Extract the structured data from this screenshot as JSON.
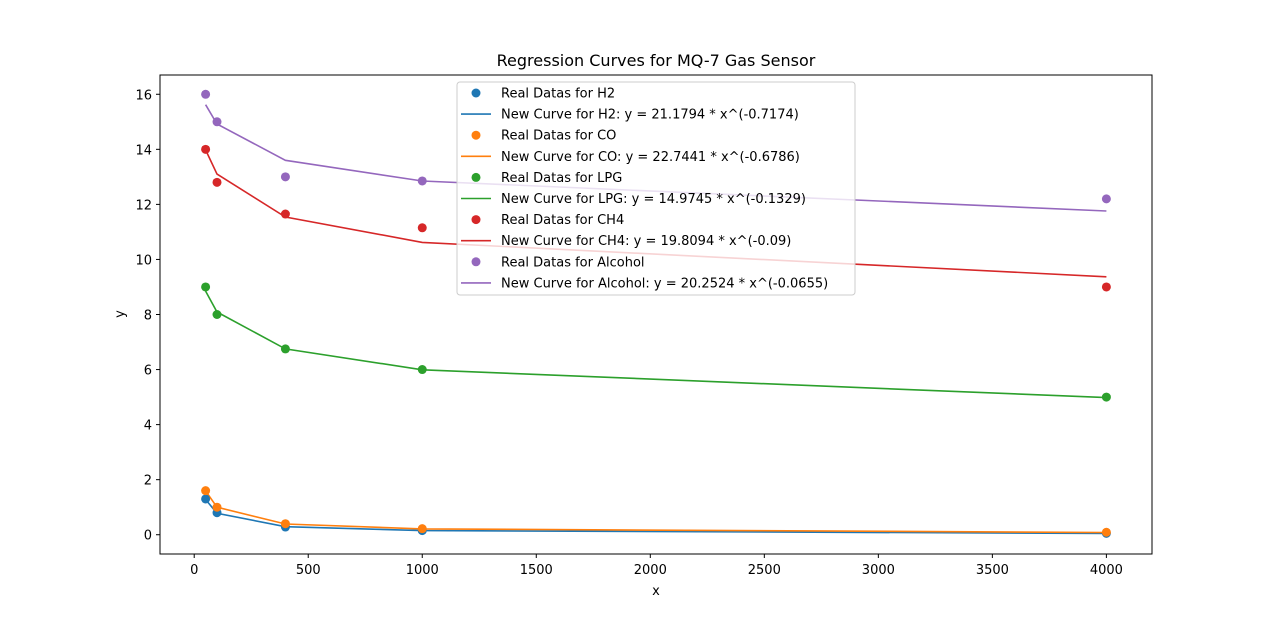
{
  "chart_data": {
    "type": "scatter",
    "title": "Regression Curves for MQ-7 Gas Sensor",
    "xlabel": "x",
    "ylabel": "y",
    "xlim": [
      -150,
      4200
    ],
    "ylim": [
      -0.7,
      16.7
    ],
    "xticks": [
      0,
      500,
      1000,
      1500,
      2000,
      2500,
      3000,
      3500,
      4000
    ],
    "yticks": [
      0,
      2,
      4,
      6,
      8,
      10,
      12,
      14,
      16
    ],
    "grid": false,
    "legend_position": "top-center",
    "x": [
      50,
      100,
      400,
      1000,
      4000
    ],
    "series": [
      {
        "name": "H2",
        "scatter_label": "Real Datas for H2",
        "curve_label": "New Curve for H2: y = 21.1794 * x^(-0.7174)",
        "color": "#1f77b4",
        "points": [
          1.3,
          0.8,
          0.28,
          0.15,
          0.05
        ],
        "curve": [
          1.28,
          0.78,
          0.29,
          0.15,
          0.05
        ]
      },
      {
        "name": "CO",
        "scatter_label": "Real Datas for CO",
        "curve_label": "New Curve for CO: y = 22.7441 * x^(-0.6786)",
        "color": "#ff7f0e",
        "points": [
          1.6,
          1.0,
          0.4,
          0.22,
          0.09
        ],
        "curve": [
          1.59,
          1.0,
          0.39,
          0.21,
          0.08
        ]
      },
      {
        "name": "LPG",
        "scatter_label": "Real Datas for LPG",
        "curve_label": "New Curve for LPG: y = 14.9745 * x^(-0.1329)",
        "color": "#2ca02c",
        "points": [
          9.0,
          8.0,
          6.75,
          6.0,
          5.0
        ],
        "curve": [
          8.85,
          8.09,
          6.75,
          5.99,
          4.98
        ]
      },
      {
        "name": "CH4",
        "scatter_label": "Real Datas for CH4",
        "curve_label": "New Curve for CH4: y = 19.8094 * x^(-0.09)",
        "color": "#d62728",
        "points": [
          14.0,
          12.8,
          11.65,
          11.15,
          9.0
        ],
        "curve": [
          13.98,
          13.1,
          11.54,
          10.62,
          9.37
        ]
      },
      {
        "name": "Alcohol",
        "scatter_label": "Real Datas for Alcohol",
        "curve_label": "New Curve for Alcohol: y = 20.2524 * x^(-0.0655)",
        "color": "#9467bd",
        "points": [
          16.0,
          15.0,
          13.0,
          12.85,
          12.2
        ],
        "curve": [
          15.62,
          14.92,
          13.6,
          12.85,
          11.76
        ]
      }
    ]
  }
}
